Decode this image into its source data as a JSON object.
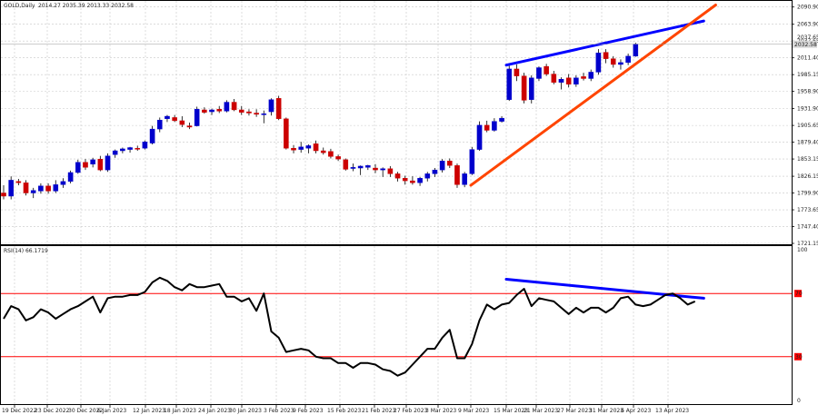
{
  "chart_data": [
    {
      "type": "candlestick",
      "symbol_label": "GOLD,Daily",
      "ohlc_readout": "2014.27 2035.39 2013.33 2032.58",
      "y_ticks": [
        2090.9,
        2063.9,
        2037.65,
        2011.4,
        1985.15,
        1958.9,
        1931.9,
        1905.65,
        1879.4,
        1853.15,
        1826.15,
        1799.9,
        1773.65,
        1747.4,
        1721.15
      ],
      "ylim": [
        1721.15,
        2099
      ],
      "current_price_label": "2032.58",
      "current_price_marker": "2037.65",
      "up_color": "#0000cc",
      "down_color": "#cc0000",
      "candles": [
        {
          "o": 1800,
          "h": 1812,
          "l": 1790,
          "c": 1795
        },
        {
          "o": 1795,
          "h": 1826,
          "l": 1790,
          "c": 1820
        },
        {
          "o": 1818,
          "h": 1822,
          "l": 1812,
          "c": 1816
        },
        {
          "o": 1816,
          "h": 1820,
          "l": 1796,
          "c": 1800
        },
        {
          "o": 1800,
          "h": 1808,
          "l": 1792,
          "c": 1804
        },
        {
          "o": 1803,
          "h": 1815,
          "l": 1799,
          "c": 1811
        },
        {
          "o": 1811,
          "h": 1815,
          "l": 1799,
          "c": 1803
        },
        {
          "o": 1803,
          "h": 1820,
          "l": 1800,
          "c": 1813
        },
        {
          "o": 1813,
          "h": 1823,
          "l": 1808,
          "c": 1818
        },
        {
          "o": 1818,
          "h": 1835,
          "l": 1815,
          "c": 1832
        },
        {
          "o": 1832,
          "h": 1852,
          "l": 1830,
          "c": 1848
        },
        {
          "o": 1848,
          "h": 1853,
          "l": 1836,
          "c": 1840
        },
        {
          "o": 1845,
          "h": 1855,
          "l": 1840,
          "c": 1852
        },
        {
          "o": 1853,
          "h": 1858,
          "l": 1834,
          "c": 1836
        },
        {
          "o": 1836,
          "h": 1862,
          "l": 1833,
          "c": 1858
        },
        {
          "o": 1860,
          "h": 1868,
          "l": 1855,
          "c": 1866
        },
        {
          "o": 1866,
          "h": 1871,
          "l": 1862,
          "c": 1869
        },
        {
          "o": 1868,
          "h": 1872,
          "l": 1863,
          "c": 1871
        },
        {
          "o": 1870,
          "h": 1874,
          "l": 1866,
          "c": 1869
        },
        {
          "o": 1870,
          "h": 1882,
          "l": 1868,
          "c": 1880
        },
        {
          "o": 1878,
          "h": 1905,
          "l": 1876,
          "c": 1900
        },
        {
          "o": 1900,
          "h": 1918,
          "l": 1895,
          "c": 1914
        },
        {
          "o": 1916,
          "h": 1922,
          "l": 1911,
          "c": 1920
        },
        {
          "o": 1918,
          "h": 1922,
          "l": 1911,
          "c": 1913
        },
        {
          "o": 1913,
          "h": 1920,
          "l": 1903,
          "c": 1907
        },
        {
          "o": 1905,
          "h": 1910,
          "l": 1900,
          "c": 1903
        },
        {
          "o": 1905,
          "h": 1935,
          "l": 1904,
          "c": 1931
        },
        {
          "o": 1930,
          "h": 1934,
          "l": 1924,
          "c": 1926
        },
        {
          "o": 1927,
          "h": 1932,
          "l": 1922,
          "c": 1930
        },
        {
          "o": 1931,
          "h": 1936,
          "l": 1925,
          "c": 1928
        },
        {
          "o": 1928,
          "h": 1945,
          "l": 1926,
          "c": 1942
        },
        {
          "o": 1942,
          "h": 1947,
          "l": 1928,
          "c": 1930
        },
        {
          "o": 1930,
          "h": 1936,
          "l": 1922,
          "c": 1926
        },
        {
          "o": 1927,
          "h": 1931,
          "l": 1921,
          "c": 1925
        },
        {
          "o": 1925,
          "h": 1931,
          "l": 1919,
          "c": 1923
        },
        {
          "o": 1924,
          "h": 1929,
          "l": 1909,
          "c": 1924
        },
        {
          "o": 1927,
          "h": 1948,
          "l": 1921,
          "c": 1946
        },
        {
          "o": 1948,
          "h": 1952,
          "l": 1914,
          "c": 1916
        },
        {
          "o": 1916,
          "h": 1918,
          "l": 1868,
          "c": 1870
        },
        {
          "o": 1870,
          "h": 1875,
          "l": 1862,
          "c": 1867
        },
        {
          "o": 1868,
          "h": 1880,
          "l": 1863,
          "c": 1872
        },
        {
          "o": 1870,
          "h": 1876,
          "l": 1862,
          "c": 1874
        },
        {
          "o": 1877,
          "h": 1882,
          "l": 1862,
          "c": 1866
        },
        {
          "o": 1866,
          "h": 1871,
          "l": 1860,
          "c": 1863
        },
        {
          "o": 1865,
          "h": 1869,
          "l": 1854,
          "c": 1857
        },
        {
          "o": 1857,
          "h": 1860,
          "l": 1850,
          "c": 1853
        },
        {
          "o": 1852,
          "h": 1854,
          "l": 1835,
          "c": 1837
        },
        {
          "o": 1840,
          "h": 1846,
          "l": 1834,
          "c": 1840
        },
        {
          "o": 1839,
          "h": 1843,
          "l": 1828,
          "c": 1842
        },
        {
          "o": 1840,
          "h": 1844,
          "l": 1836,
          "c": 1843
        },
        {
          "o": 1839,
          "h": 1845,
          "l": 1831,
          "c": 1836
        },
        {
          "o": 1836,
          "h": 1840,
          "l": 1825,
          "c": 1838
        },
        {
          "o": 1838,
          "h": 1842,
          "l": 1825,
          "c": 1830
        },
        {
          "o": 1830,
          "h": 1833,
          "l": 1818,
          "c": 1823
        },
        {
          "o": 1823,
          "h": 1827,
          "l": 1813,
          "c": 1819
        },
        {
          "o": 1819,
          "h": 1826,
          "l": 1813,
          "c": 1816
        },
        {
          "o": 1816,
          "h": 1825,
          "l": 1811,
          "c": 1823
        },
        {
          "o": 1823,
          "h": 1833,
          "l": 1818,
          "c": 1830
        },
        {
          "o": 1830,
          "h": 1839,
          "l": 1825,
          "c": 1836
        },
        {
          "o": 1836,
          "h": 1853,
          "l": 1832,
          "c": 1850
        },
        {
          "o": 1850,
          "h": 1854,
          "l": 1839,
          "c": 1843
        },
        {
          "o": 1843,
          "h": 1846,
          "l": 1808,
          "c": 1813
        },
        {
          "o": 1813,
          "h": 1833,
          "l": 1809,
          "c": 1830
        },
        {
          "o": 1830,
          "h": 1872,
          "l": 1828,
          "c": 1868
        },
        {
          "o": 1868,
          "h": 1912,
          "l": 1866,
          "c": 1906
        },
        {
          "o": 1906,
          "h": 1913,
          "l": 1895,
          "c": 1898
        },
        {
          "o": 1898,
          "h": 1917,
          "l": 1896,
          "c": 1912
        },
        {
          "o": 1912,
          "h": 1920,
          "l": 1910,
          "c": 1917
        },
        {
          "o": 1946,
          "h": 1999,
          "l": 1944,
          "c": 1994
        },
        {
          "o": 1994,
          "h": 2001,
          "l": 1975,
          "c": 1983
        },
        {
          "o": 1983,
          "h": 1988,
          "l": 1940,
          "c": 1945
        },
        {
          "o": 1946,
          "h": 1984,
          "l": 1940,
          "c": 1980
        },
        {
          "o": 1979,
          "h": 1998,
          "l": 1975,
          "c": 1996
        },
        {
          "o": 1998,
          "h": 2002,
          "l": 1983,
          "c": 1986
        },
        {
          "o": 1986,
          "h": 1991,
          "l": 1970,
          "c": 1973
        },
        {
          "o": 1973,
          "h": 1981,
          "l": 1962,
          "c": 1978
        },
        {
          "o": 1980,
          "h": 1986,
          "l": 1965,
          "c": 1970
        },
        {
          "o": 1970,
          "h": 1984,
          "l": 1966,
          "c": 1980
        },
        {
          "o": 1982,
          "h": 1988,
          "l": 1976,
          "c": 1979
        },
        {
          "o": 1979,
          "h": 1993,
          "l": 1975,
          "c": 1989
        },
        {
          "o": 1989,
          "h": 2025,
          "l": 1985,
          "c": 2019
        },
        {
          "o": 2020,
          "h": 2025,
          "l": 2003,
          "c": 2010
        },
        {
          "o": 2010,
          "h": 2014,
          "l": 1996,
          "c": 2001
        },
        {
          "o": 2001,
          "h": 2009,
          "l": 1993,
          "c": 2004
        },
        {
          "o": 2004,
          "h": 2018,
          "l": 2000,
          "c": 2014
        },
        {
          "o": 2014,
          "h": 2035,
          "l": 2013,
          "c": 2033
        }
      ]
    },
    {
      "type": "line",
      "title": "RSI(14) 66.1719",
      "y_ticks": [
        100,
        70,
        30,
        0
      ],
      "levels": [
        70,
        30
      ],
      "level_color": "#ff0000",
      "ylim": [
        0,
        100
      ],
      "values": [
        55,
        58,
        62,
        62,
        55,
        57,
        60,
        58,
        57,
        60,
        56,
        58,
        60,
        62,
        64,
        66,
        68,
        70,
        67,
        58,
        66,
        69,
        70,
        69,
        71,
        68,
        71,
        72,
        73,
        75,
        78,
        80,
        78,
        76,
        74,
        73,
        75,
        72,
        74,
        73,
        75,
        76,
        77,
        72,
        65,
        64,
        63,
        62,
        60,
        60,
        58,
        55,
        55,
        54,
        52,
        50,
        49,
        48,
        46,
        44,
        45,
        47,
        48,
        50,
        55,
        60,
        65,
        70,
        68,
        72,
        74,
        76,
        78,
        80,
        75,
        72,
        70,
        66,
        65,
        66
      ],
      "rsi_series": [
        54,
        62,
        60,
        53,
        55,
        60,
        58,
        54,
        57,
        60,
        62,
        65,
        68,
        58,
        67,
        68,
        68,
        69,
        69,
        71,
        77,
        80,
        78,
        74,
        72,
        76,
        74,
        74,
        75,
        76,
        68,
        68,
        65,
        67,
        59,
        70,
        46,
        42,
        33,
        34,
        35,
        34,
        30,
        29,
        29,
        26,
        26,
        23,
        26,
        26,
        25,
        22,
        21,
        18,
        20,
        25,
        30,
        35,
        35,
        42,
        47,
        29,
        29,
        38,
        53,
        63,
        60,
        63,
        64,
        69,
        73,
        62,
        67,
        66,
        65,
        61,
        57,
        61,
        58,
        61,
        61,
        58,
        61,
        67,
        68,
        63,
        62,
        63,
        66,
        69,
        70,
        67,
        63,
        65
      ]
    }
  ],
  "x_labels": [
    "19 Dec 2022",
    "23 Dec 2022",
    "30 Dec 2022",
    "6 Jan 2023",
    "12 Jan 2023",
    "18 Jan 2023",
    "24 Jan 2023",
    "30 Jan 2023",
    "3 Feb 2023",
    "9 Feb 2023",
    "15 Feb 2023",
    "21 Feb 2023",
    "27 Feb 2023",
    "3 Mar 2023",
    "9 Mar 2023",
    "15 Mar 2023",
    "21 Mar 2023",
    "27 Mar 2023",
    "31 Mar 2023",
    "6 Apr 2023",
    "13 Apr 2023"
  ],
  "trendlines": [
    {
      "name": "upper-channel-line",
      "color": "#0000ff",
      "from": {
        "date": "15 Mar 2023",
        "price": 2000
      },
      "to": {
        "date": "19 Apr 2023",
        "price": 2069
      }
    },
    {
      "name": "lower-support-line",
      "color": "#ff4500",
      "from": {
        "date": "9 Mar 2023",
        "price": 1812
      },
      "to": {
        "date": "21 Apr 2023",
        "price": 2094
      }
    },
    {
      "name": "rsi-divergence-line",
      "color": "#0000ff",
      "from": {
        "date": "15 Mar 2023",
        "rsi": 79
      },
      "to": {
        "date": "19 Apr 2023",
        "rsi": 67
      }
    }
  ]
}
